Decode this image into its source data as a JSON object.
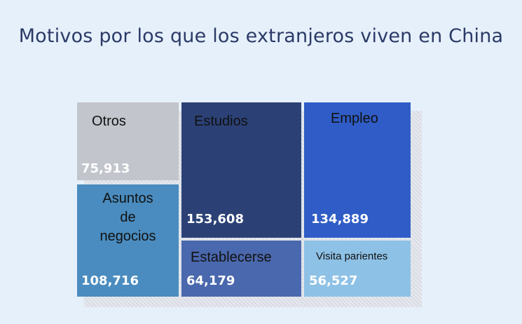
{
  "chart_data": {
    "type": "treemap",
    "title": "Motivos por los que los extranjeros viven en China",
    "items": [
      {
        "label": "Otros",
        "value_label": "75,913",
        "value": 75913,
        "color": "#c2c5cc"
      },
      {
        "label": "Asuntos de negocios",
        "label_lines": [
          "Asuntos",
          "de",
          "negocios"
        ],
        "value_label": "108,716",
        "value": 108716,
        "color": "#4a8cbf"
      },
      {
        "label": "Estudios",
        "value_label": "153,608",
        "value": 153608,
        "color": "#2b4176"
      },
      {
        "label": "Establecerse",
        "value_label": "64,179",
        "value": 64179,
        "color": "#4a68ad"
      },
      {
        "label": "Empleo",
        "value_label": "134,889",
        "value": 134889,
        "color": "#2f5cc6"
      },
      {
        "label": "Visita parientes",
        "value_label": "56,527",
        "value": 56527,
        "color": "#8ec1e6"
      }
    ]
  }
}
